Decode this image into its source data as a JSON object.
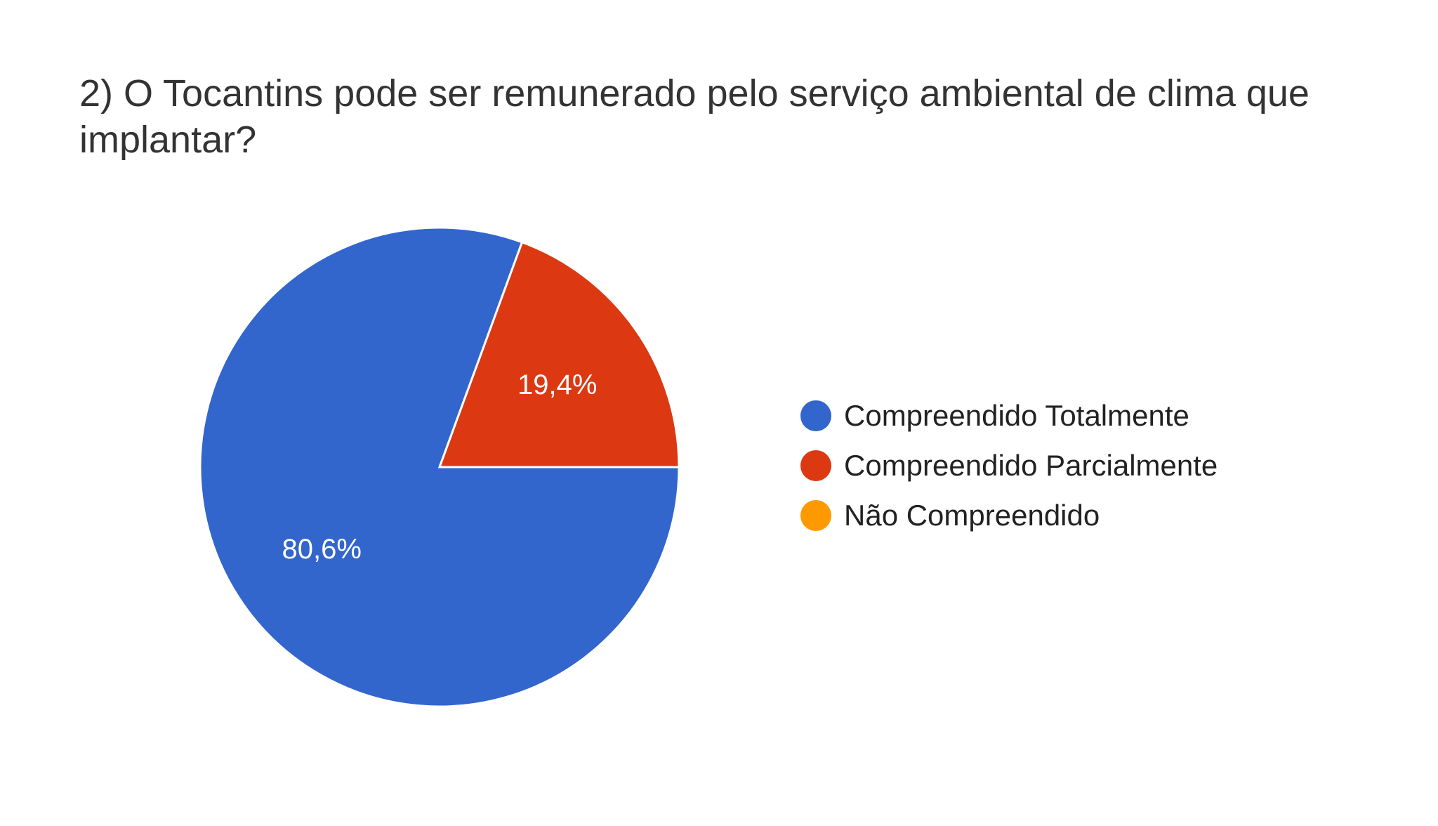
{
  "chart_data": {
    "type": "pie",
    "title": "2) O Tocantins pode ser remunerado pelo serviço ambiental de clima que implantar?",
    "slices": [
      {
        "name": "Compreendido Totalmente",
        "value": 80.6,
        "label": "80,6%",
        "color": "#3366cc"
      },
      {
        "name": "Compreendido Parcialmente",
        "value": 19.4,
        "label": "19,4%",
        "color": "#dc3912"
      },
      {
        "name": "Não Compreendido",
        "value": 0,
        "label": "",
        "color": "#ff9900"
      }
    ],
    "legend_position": "right"
  }
}
